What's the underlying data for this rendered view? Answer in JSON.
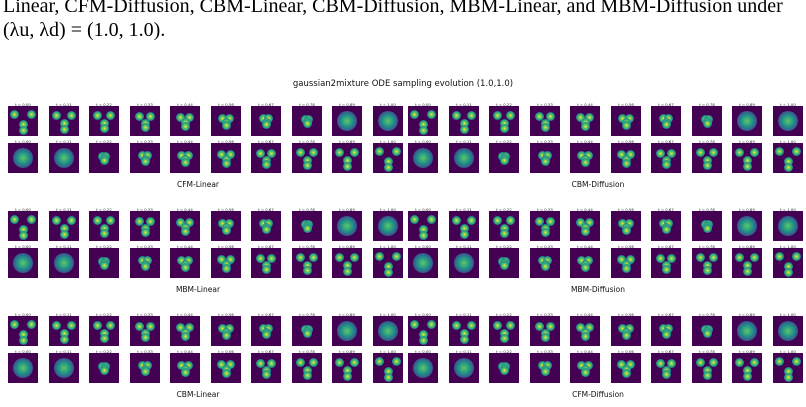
{
  "caption": {
    "line1": "Linear, CFM-Diffusion, CBM-Linear, CBM-Diffusion, MBM-Linear, and MBM-Diffusion under",
    "line2": "(λu, λd) = (1.0, 1.0)."
  },
  "figure": {
    "title": "gaussian2mixture  ODE sampling evolution  (1.0,1.0)",
    "time_labels": [
      "t = 0.00",
      "t = 0.11",
      "t = 0.22",
      "t = 0.33",
      "t = 0.44",
      "t = 0.56",
      "t = 0.67",
      "t = 0.78",
      "t = 0.89",
      "t = 1.00"
    ],
    "panels": [
      {
        "label": "CFM-Linear"
      },
      {
        "label": "CBM-Diffusion"
      },
      {
        "label": "MBM-Linear"
      },
      {
        "label": "MBM-Diffusion"
      },
      {
        "label": "CBM-Linear"
      },
      {
        "label": "CFM-Diffusion"
      }
    ],
    "colors": {
      "background": "#440154",
      "low": "#3b528b",
      "mid": "#21918c",
      "high": "#5ec962",
      "peak": "#fde725"
    }
  }
}
